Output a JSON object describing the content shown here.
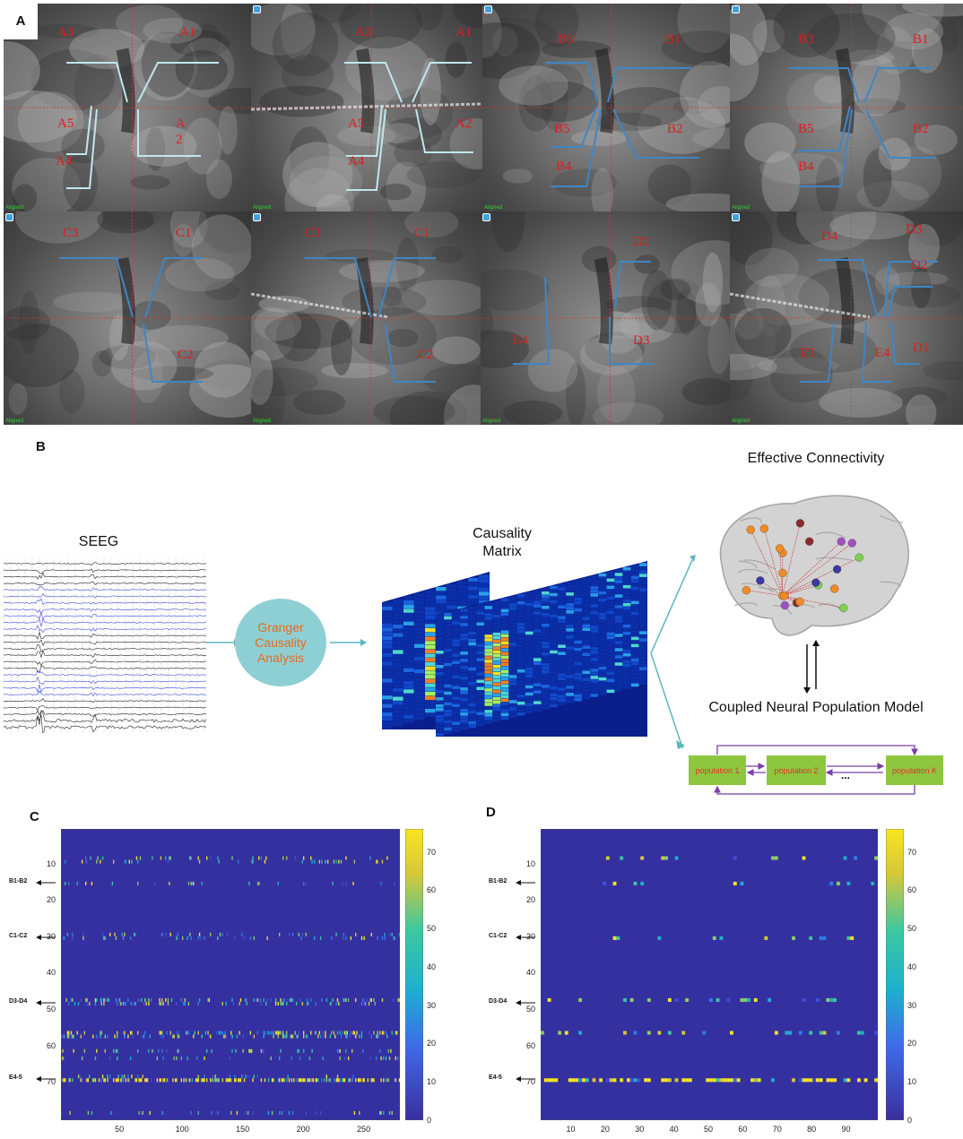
{
  "figure": {
    "panel_a": {
      "letter": "A",
      "images": [
        {
          "labels": [
            "A3",
            "A1",
            "A5",
            "A",
            "2",
            "A4"
          ]
        },
        {
          "labels": [
            "A3",
            "A1",
            "A5",
            "A2",
            "A4"
          ]
        },
        {
          "labels": [
            "B3",
            "B1",
            "B5",
            "B2",
            "B4"
          ]
        },
        {
          "labels": [
            "B3",
            "B1",
            "B5",
            "B2",
            "B4"
          ]
        },
        {
          "labels": [
            "C3",
            "C1",
            "C2"
          ]
        },
        {
          "labels": [
            "C3",
            "C1",
            "C2"
          ]
        },
        {
          "labels": [
            "D2",
            "E4",
            "D3"
          ]
        },
        {
          "labels": [
            "D4",
            "D3",
            "D2",
            "E5",
            "E4",
            "D1"
          ]
        }
      ],
      "aligned_text": "Aligned",
      "electrode_line_colors": {
        "light": "#bfe8ec",
        "blue": "#3f86c6"
      },
      "label_color": "#e31b1b"
    },
    "panel_b": {
      "letter": "B",
      "seeg_title": "SEEG",
      "granger_text": "Granger Causality Analysis",
      "causality_title": "Causality Matrix",
      "effective_title": "Effective Connectivity",
      "model_title": "Coupled Neural Population Model",
      "populations": [
        "population 1",
        "population 2",
        "population K"
      ],
      "ellipsis": "...",
      "arrow_color": "#5ab7bf",
      "box_color": "#8dc63f",
      "loop_color": "#7a3fa8"
    },
    "panel_c": {
      "letter": "C",
      "row_markers": [
        "B1-B2",
        "C1-C2",
        "D3-D4",
        "E4-5"
      ],
      "y_ticks": [
        "10",
        "20",
        "30",
        "40",
        "50",
        "60",
        "70"
      ],
      "x_ticks": [
        "50",
        "100",
        "150",
        "200",
        "250"
      ],
      "colorbar_ticks": [
        "70",
        "60",
        "50",
        "40",
        "30",
        "20",
        "10",
        "0"
      ]
    },
    "panel_d": {
      "letter": "D",
      "row_markers": [
        "B1-B2",
        "C1-C2",
        "D3-D4",
        "E4-5"
      ],
      "y_ticks": [
        "10",
        "20",
        "30",
        "40",
        "50",
        "60",
        "70"
      ],
      "x_ticks": [
        "10",
        "20",
        "30",
        "40",
        "50",
        "60",
        "70",
        "80",
        "90"
      ],
      "colorbar_ticks": [
        "70",
        "60",
        "50",
        "40",
        "30",
        "20",
        "10",
        "0"
      ]
    },
    "colormap": {
      "low": "#3b2d93",
      "mid": "#27b3c0",
      "high": "#f8e51e",
      "bg": "#3530a0"
    }
  },
  "chart_data": [
    {
      "type": "heatmap",
      "panel": "C",
      "x_range": [
        1,
        280
      ],
      "y_range": [
        1,
        76
      ],
      "color_range": [
        0,
        76
      ],
      "colorbar_ticks": [
        0,
        10,
        20,
        30,
        40,
        50,
        60,
        70
      ],
      "y_tick_labels": [
        10,
        20,
        30,
        40,
        50,
        60,
        70
      ],
      "x_tick_labels": [
        50,
        100,
        150,
        200,
        250
      ],
      "row_annotations": [
        {
          "label": "B1-B2",
          "row": 15
        },
        {
          "label": "C1-C2",
          "row": 30
        },
        {
          "label": "D3-D4",
          "row": 48
        },
        {
          "label": "E4-5",
          "row": 69
        }
      ],
      "active_rows": [
        8,
        9,
        15,
        29,
        30,
        47,
        48,
        56,
        57,
        61,
        63,
        68,
        69,
        78
      ]
    },
    {
      "type": "heatmap",
      "panel": "D",
      "x_range": [
        1,
        98
      ],
      "y_range": [
        1,
        76
      ],
      "color_range": [
        0,
        76
      ],
      "colorbar_ticks": [
        0,
        10,
        20,
        30,
        40,
        50,
        60,
        70
      ],
      "y_tick_labels": [
        10,
        20,
        30,
        40,
        50,
        60,
        70
      ],
      "x_tick_labels": [
        10,
        20,
        30,
        40,
        50,
        60,
        70,
        80,
        90
      ],
      "row_annotations": [
        {
          "label": "B1-B2",
          "row": 15
        },
        {
          "label": "C1-C2",
          "row": 30
        },
        {
          "label": "D3-D4",
          "row": 48
        },
        {
          "label": "E4-5",
          "row": 69
        }
      ],
      "active_rows": [
        8,
        15,
        30,
        47,
        56,
        69
      ]
    }
  ]
}
